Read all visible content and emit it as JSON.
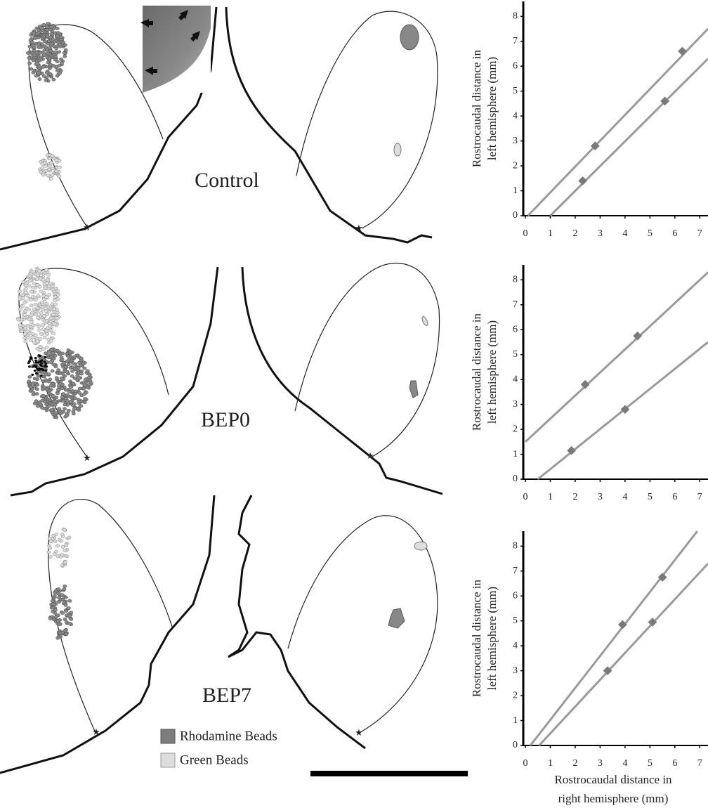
{
  "panels": [
    {
      "label": "Control"
    },
    {
      "label": "BEP0"
    },
    {
      "label": "BEP7"
    }
  ],
  "legend": [
    "Rhodamine Beads",
    "Green Beads"
  ],
  "chart_data": [
    {
      "type": "line",
      "ylabel": [
        "Rostrocaudal distance in",
        "left hemisphere (mm)"
      ],
      "xlim": [
        0,
        7.33
      ],
      "ylim": [
        0,
        8.6
      ],
      "xticks": [
        0,
        1,
        2,
        3,
        4,
        5,
        6,
        7
      ],
      "yticks": [
        0,
        1,
        2,
        3,
        4,
        5,
        6,
        7,
        8
      ],
      "series": [
        {
          "color": "#7a7a7a",
          "x": [
            2.8,
            6.3
          ],
          "values": [
            2.8,
            6.6
          ]
        },
        {
          "color": "#7a7a7a",
          "x": [
            2.3,
            5.6
          ],
          "values": [
            1.4,
            4.6
          ]
        }
      ],
      "lines": [
        {
          "color": "#9a9a9a",
          "x": [
            0.1,
            7.33
          ],
          "values": [
            0,
            7.5
          ]
        },
        {
          "color": "#9a9a9a",
          "x": [
            1.0,
            7.33
          ],
          "values": [
            0,
            6.3
          ]
        }
      ]
    },
    {
      "type": "line",
      "ylabel": [
        "Rostrocaudal distance in",
        "left hemisphere (mm)"
      ],
      "xlim": [
        0,
        7.33
      ],
      "ylim": [
        0,
        8.6
      ],
      "xticks": [
        0,
        1,
        2,
        3,
        4,
        5,
        6,
        7
      ],
      "yticks": [
        0,
        1,
        2,
        3,
        4,
        5,
        6,
        7,
        8
      ],
      "series": [
        {
          "color": "#7a7a7a",
          "x": [
            2.4,
            4.5
          ],
          "values": [
            3.8,
            5.75
          ]
        },
        {
          "color": "#7a7a7a",
          "x": [
            1.85,
            4.0
          ],
          "values": [
            1.15,
            2.8
          ]
        }
      ],
      "lines": [
        {
          "color": "#9a9a9a",
          "x": [
            0,
            7.33
          ],
          "values": [
            1.5,
            8.3
          ]
        },
        {
          "color": "#9a9a9a",
          "x": [
            0.5,
            7.33
          ],
          "values": [
            0,
            5.5
          ]
        }
      ]
    },
    {
      "type": "line",
      "ylabel": [
        "Rostrocaudal distance in",
        "left hemisphere (mm)"
      ],
      "xlabel": [
        "Rostrocaudal distance in",
        "right hemisphere (mm)"
      ],
      "xlim": [
        0,
        7.33
      ],
      "ylim": [
        0,
        8.6
      ],
      "xticks": [
        0,
        1,
        2,
        3,
        4,
        5,
        6,
        7
      ],
      "yticks": [
        0,
        1,
        2,
        3,
        4,
        5,
        6,
        7,
        8
      ],
      "series": [
        {
          "color": "#7a7a7a",
          "x": [
            3.9,
            5.5
          ],
          "values": [
            4.85,
            6.75
          ]
        },
        {
          "color": "#7a7a7a",
          "x": [
            3.3,
            5.1
          ],
          "values": [
            3.0,
            4.95
          ]
        }
      ],
      "lines": [
        {
          "color": "#9a9a9a",
          "x": [
            0.2,
            6.9
          ],
          "values": [
            0,
            8.6
          ]
        },
        {
          "color": "#9a9a9a",
          "x": [
            0.55,
            7.33
          ],
          "values": [
            0,
            7.3
          ]
        }
      ]
    }
  ]
}
